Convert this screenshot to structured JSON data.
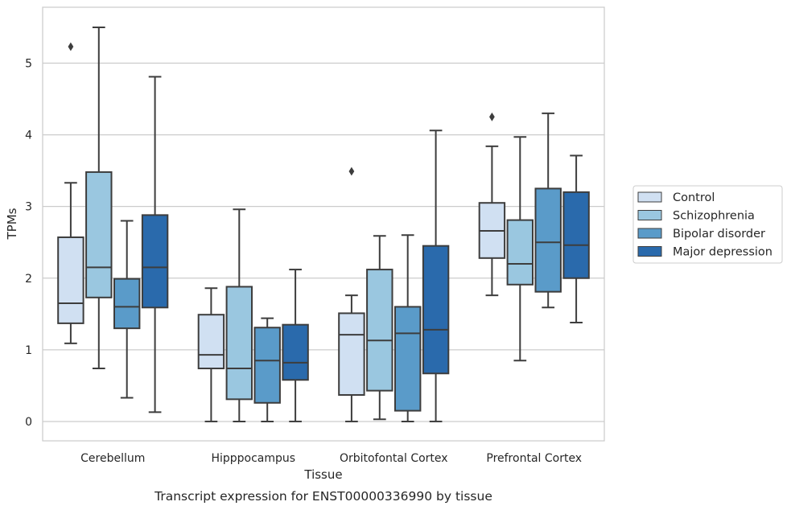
{
  "caption": "Transcript expression for ENST00000336990 by tissue",
  "chart_data": {
    "type": "box",
    "title": "",
    "xlabel": "Tissue",
    "ylabel": "TPMs",
    "ylim": [
      -0.27,
      5.78
    ],
    "yticks": [
      0,
      1,
      2,
      3,
      4,
      5
    ],
    "grid": "horizontal",
    "legend_position": "right",
    "categories": [
      "Cerebellum",
      "Hipppocampus",
      "Orbitofontal Cortex",
      "Prefrontal Cortex"
    ],
    "series": [
      {
        "name": "Control",
        "color": "#d0e0f2",
        "boxes": [
          {
            "whisker_low": 1.09,
            "q1": 1.37,
            "median": 1.65,
            "q3": 2.57,
            "whisker_high": 3.33,
            "outliers": [
              5.23
            ]
          },
          {
            "whisker_low": 0.0,
            "q1": 0.74,
            "median": 0.93,
            "q3": 1.49,
            "whisker_high": 1.86,
            "outliers": []
          },
          {
            "whisker_low": 0.0,
            "q1": 0.37,
            "median": 1.21,
            "q3": 1.51,
            "whisker_high": 1.76,
            "outliers": [
              3.49
            ]
          },
          {
            "whisker_low": 1.76,
            "q1": 2.28,
            "median": 2.66,
            "q3": 3.05,
            "whisker_high": 3.84,
            "outliers": [
              4.25
            ]
          }
        ]
      },
      {
        "name": "Schizophrenia",
        "color": "#9ac7e0",
        "boxes": [
          {
            "whisker_low": 0.74,
            "q1": 1.73,
            "median": 2.15,
            "q3": 3.48,
            "whisker_high": 5.5,
            "outliers": []
          },
          {
            "whisker_low": 0.0,
            "q1": 0.31,
            "median": 0.74,
            "q3": 1.88,
            "whisker_high": 2.96,
            "outliers": []
          },
          {
            "whisker_low": 0.03,
            "q1": 0.43,
            "median": 1.13,
            "q3": 2.12,
            "whisker_high": 2.59,
            "outliers": []
          },
          {
            "whisker_low": 0.85,
            "q1": 1.91,
            "median": 2.2,
            "q3": 2.81,
            "whisker_high": 3.97,
            "outliers": []
          }
        ]
      },
      {
        "name": "Bipolar disorder",
        "color": "#5a9bc9",
        "boxes": [
          {
            "whisker_low": 0.33,
            "q1": 1.3,
            "median": 1.6,
            "q3": 1.99,
            "whisker_high": 2.8,
            "outliers": []
          },
          {
            "whisker_low": 0.0,
            "q1": 0.26,
            "median": 0.85,
            "q3": 1.31,
            "whisker_high": 1.44,
            "outliers": []
          },
          {
            "whisker_low": 0.0,
            "q1": 0.15,
            "median": 1.23,
            "q3": 1.6,
            "whisker_high": 2.6,
            "outliers": []
          },
          {
            "whisker_low": 1.59,
            "q1": 1.81,
            "median": 2.5,
            "q3": 3.25,
            "whisker_high": 4.3,
            "outliers": []
          }
        ]
      },
      {
        "name": "Major depression",
        "color": "#2a6aac",
        "boxes": [
          {
            "whisker_low": 0.13,
            "q1": 1.59,
            "median": 2.15,
            "q3": 2.88,
            "whisker_high": 4.81,
            "outliers": []
          },
          {
            "whisker_low": 0.0,
            "q1": 0.58,
            "median": 0.82,
            "q3": 1.35,
            "whisker_high": 2.12,
            "outliers": []
          },
          {
            "whisker_low": 0.0,
            "q1": 0.67,
            "median": 1.28,
            "q3": 2.45,
            "whisker_high": 4.06,
            "outliers": []
          },
          {
            "whisker_low": 1.38,
            "q1": 2.0,
            "median": 2.46,
            "q3": 3.2,
            "whisker_high": 3.71,
            "outliers": []
          }
        ]
      }
    ]
  }
}
